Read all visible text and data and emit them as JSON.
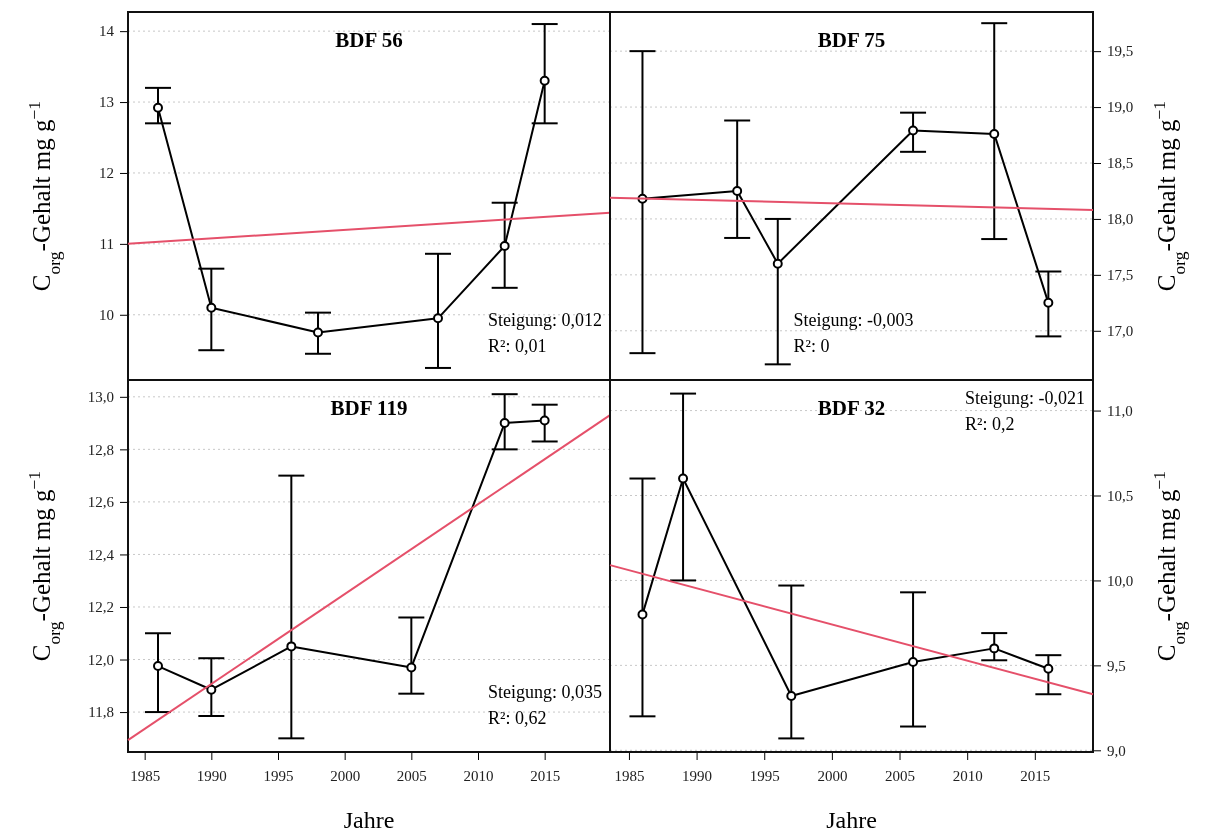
{
  "chart_data": [
    {
      "type": "line",
      "title": "BDF 56",
      "ylabel": "C$_{org}$-Gehalt mg g$^{−1}$",
      "xlim": [
        1983.75,
        2019.9
      ],
      "ylim": [
        9.08,
        14.27
      ],
      "yticks": [
        10,
        11,
        12,
        13,
        14
      ],
      "tick_labels": "y",
      "grid": "y",
      "marker": "circle",
      "line_style": "solid",
      "series": [
        {
          "color": "#000000",
          "x": [
            1986,
            1990,
            1998,
            2007,
            2012,
            2015
          ],
          "values": [
            12.92,
            10.1,
            9.75,
            9.95,
            10.97,
            13.3
          ],
          "errors": [
            [
              12.7,
              13.2
            ],
            [
              9.5,
              10.65
            ],
            [
              9.45,
              10.03
            ],
            [
              9.25,
              10.86
            ],
            [
              10.38,
              11.58
            ],
            [
              12.7,
              14.1
            ]
          ]
        },
        {
          "type": "line",
          "marker": "none",
          "color": "#e5506a",
          "x": [
            1983.75,
            2019.9
          ],
          "values": [
            11.0,
            11.44
          ]
        }
      ],
      "annotations": [
        "Steigung:  0,012",
        "R²:  0,01"
      ]
    },
    {
      "type": "line",
      "title": "BDF 75",
      "y2label": "C$_{org}$-Gehalt mg g$^{−1}$",
      "xlim": [
        1983.6,
        2019.3
      ],
      "y2lim": [
        16.56,
        19.85
      ],
      "y2ticks": [
        {
          "value": 17,
          "label": "17,0"
        },
        {
          "value": 17.5,
          "label": "17,5"
        },
        {
          "value": 18,
          "label": "18,0"
        },
        {
          "value": 18.5,
          "label": "18,5"
        },
        {
          "value": 19,
          "label": "19,0"
        },
        {
          "value": 19.5,
          "label": "19,5"
        }
      ],
      "tick_labels": "y2",
      "grid": "y",
      "marker": "circle",
      "line_style": "solid",
      "series": [
        {
          "axis": "y2",
          "color": "#000000",
          "x": [
            1986,
            1993,
            1996,
            2006,
            2012,
            2016
          ],
          "values": [
            18.18,
            18.25,
            17.6,
            18.79,
            18.76,
            17.25
          ],
          "errors": [
            [
              16.8,
              19.5
            ],
            [
              17.83,
              18.88
            ],
            [
              16.7,
              18.0
            ],
            [
              18.6,
              18.95
            ],
            [
              17.82,
              19.75
            ],
            [
              16.95,
              17.53
            ]
          ]
        },
        {
          "axis": "y2",
          "type": "line",
          "marker": "none",
          "color": "#e5506a",
          "x": [
            1983.6,
            2019.3
          ],
          "values": [
            18.19,
            18.08
          ]
        }
      ],
      "annotations": [
        "Steigung:  -0,003",
        "R²:  0"
      ]
    },
    {
      "type": "line",
      "title": "BDF 119",
      "ylabel": "C$_{org}$-Gehalt mg g$^{−1}$",
      "xlabel": "Jahre",
      "xlim": [
        1983.75,
        2019.9
      ],
      "xticks": [
        1985,
        1990,
        1995,
        2000,
        2005,
        2010,
        2015
      ],
      "ylim": [
        11.648,
        13.064
      ],
      "yticks": [
        {
          "value": 11.8,
          "label": "11,8"
        },
        {
          "value": 12,
          "label": "12,0"
        },
        {
          "value": 12.2,
          "label": "12,2"
        },
        {
          "value": 12.4,
          "label": "12,4"
        },
        {
          "value": 12.6,
          "label": "12,6"
        },
        {
          "value": 12.8,
          "label": "12,8"
        },
        {
          "value": 13,
          "label": "13,0"
        }
      ],
      "grid": "y",
      "marker": "circle",
      "line_style": "solid",
      "series": [
        {
          "color": "#000000",
          "x": [
            1986,
            1990,
            1996,
            2005,
            2012,
            2015
          ],
          "values": [
            11.975,
            11.885,
            12.05,
            11.97,
            12.9,
            12.91
          ],
          "errors": [
            [
              11.8,
              12.1
            ],
            [
              11.785,
              12.005
            ],
            [
              11.7,
              12.7
            ],
            [
              11.87,
              12.16
            ],
            [
              12.8,
              13.01
            ],
            [
              12.83,
              12.97
            ]
          ]
        },
        {
          "type": "line",
          "marker": "none",
          "color": "#e5506a",
          "x": [
            1983.75,
            2019.9
          ],
          "values": [
            11.693,
            12.93
          ]
        }
      ],
      "annotations": [
        "Steigung:  0,035",
        "R²:  0,62"
      ]
    },
    {
      "type": "line",
      "title": "BDF 32",
      "y2label": "C$_{org}$-Gehalt mg g$^{−1}$",
      "xlabel": "Jahre",
      "xlim": [
        1983.6,
        2019.3
      ],
      "xticks": [
        1985,
        1990,
        1995,
        2000,
        2005,
        2010,
        2015
      ],
      "y2lim": [
        8.99,
        11.18
      ],
      "y2ticks": [
        {
          "value": 9,
          "label": "9,0"
        },
        {
          "value": 9.5,
          "label": "9,5"
        },
        {
          "value": 10,
          "label": "10,0"
        },
        {
          "value": 10.5,
          "label": "10,5"
        },
        {
          "value": 11,
          "label": "11,0"
        }
      ],
      "grid": "y",
      "marker": "circle",
      "line_style": "solid",
      "series": [
        {
          "axis": "y2",
          "color": "#000000",
          "x": [
            1986,
            1989,
            1997,
            2006,
            2012,
            2016
          ],
          "values": [
            9.8,
            10.6,
            9.32,
            9.52,
            9.6,
            9.48
          ],
          "errors": [
            [
              9.2,
              10.6
            ],
            [
              10.0,
              11.1
            ],
            [
              9.07,
              9.97
            ],
            [
              9.14,
              9.93
            ],
            [
              9.53,
              9.69
            ],
            [
              9.33,
              9.56
            ]
          ]
        },
        {
          "axis": "y2",
          "type": "line",
          "marker": "none",
          "color": "#e5506a",
          "x": [
            1983.6,
            2019.3
          ],
          "values": [
            10.09,
            9.33
          ]
        }
      ],
      "annotations": [
        "Steigung:  -0,021",
        "R²:  0,2"
      ]
    }
  ]
}
